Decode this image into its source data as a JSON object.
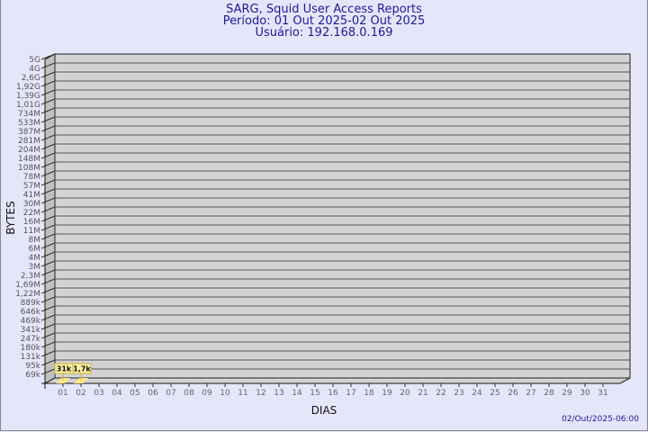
{
  "header": {
    "title": "SARG, Squid User Access Reports",
    "period": "Período: 01 Out 2025-02 Out 2025",
    "user": "Usuário: 192.168.0.169"
  },
  "footer": {
    "generated": "02/Out/2025-06:00"
  },
  "colors": {
    "background": "#e6e6fa",
    "plot": "#d3d3d3",
    "bar": "#ffe680",
    "label_box": "#fff0a0",
    "title": "#1a1a9a"
  },
  "chart_data": {
    "type": "bar",
    "xlabel": "DIAS",
    "ylabel": "BYTES",
    "y_scale": "log",
    "y_ticks": [
      "5G",
      "4G",
      "2,6G",
      "1,92G",
      "1,39G",
      "1,01G",
      "734M",
      "533M",
      "387M",
      "281M",
      "204M",
      "148M",
      "108M",
      "78M",
      "57M",
      "41M",
      "30M",
      "22M",
      "16M",
      "11M",
      "8M",
      "6M",
      "4M",
      "3M",
      "2,3M",
      "1,69M",
      "1,22M",
      "889k",
      "646k",
      "469k",
      "341k",
      "247k",
      "180k",
      "131k",
      "95k",
      "69k"
    ],
    "categories": [
      "01",
      "02",
      "03",
      "04",
      "05",
      "06",
      "07",
      "08",
      "09",
      "10",
      "11",
      "12",
      "13",
      "14",
      "15",
      "16",
      "17",
      "18",
      "19",
      "20",
      "21",
      "22",
      "23",
      "24",
      "25",
      "26",
      "27",
      "28",
      "29",
      "30",
      "31"
    ],
    "bars": [
      {
        "day": "01",
        "value": 31000,
        "label": "31k"
      },
      {
        "day": "02",
        "value": 1700,
        "label": "1,7k"
      }
    ],
    "grid": true
  }
}
